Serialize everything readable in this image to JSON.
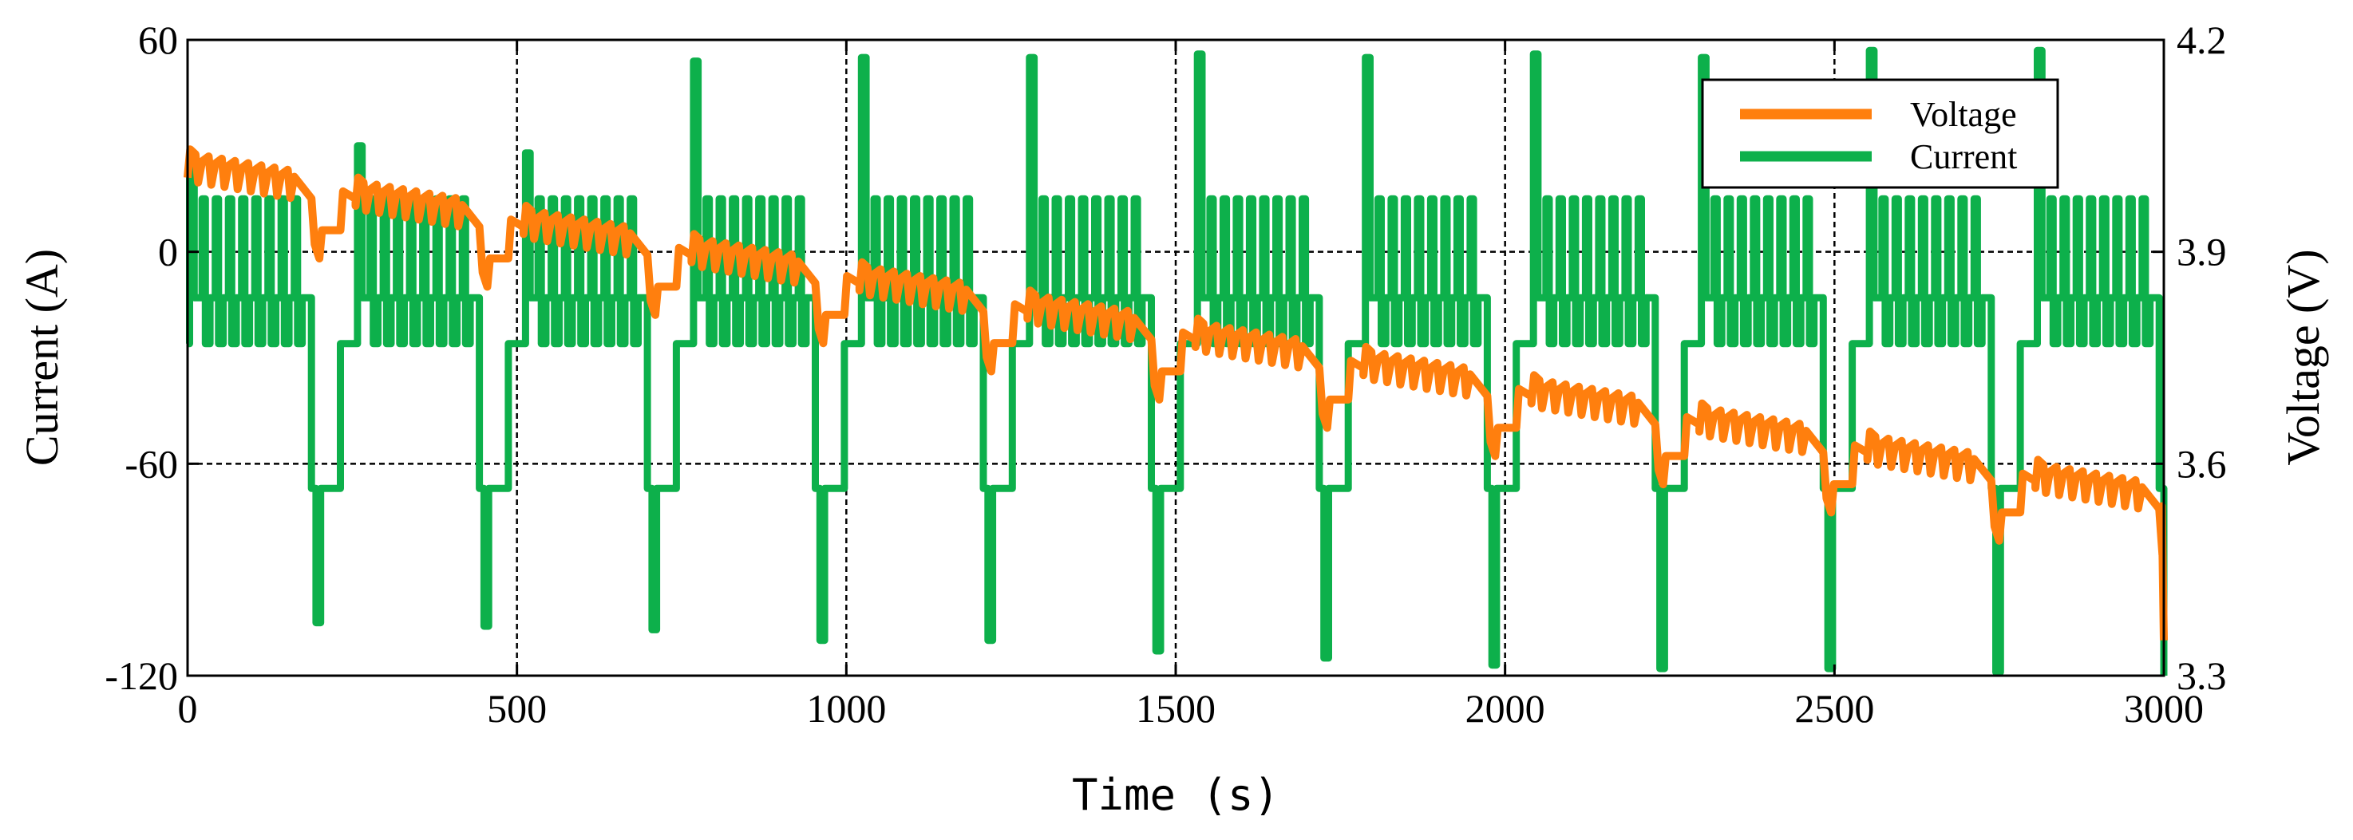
{
  "chart_data": {
    "type": "line",
    "title": "",
    "xlabel": "Time (s)",
    "ylabel_left": "Current (A)",
    "ylabel_right": "Voltage (V)",
    "xlim": [
      0,
      3000
    ],
    "ylim_left": [
      -120,
      60
    ],
    "ylim_right": [
      3.3,
      4.2
    ],
    "x_ticks": [
      "0",
      "500",
      "1000",
      "1500",
      "2000",
      "2500",
      "3000"
    ],
    "y_ticks_left": [
      "60",
      "0",
      "-60",
      "-120"
    ],
    "y_ticks_right": [
      "4.2",
      "3.9",
      "3.6",
      "3.3"
    ],
    "grid": true,
    "legend_position": "top-right",
    "legend": [
      "Voltage",
      "Current"
    ],
    "colors": {
      "voltage": "#ff7f0e",
      "current": "#0db04b"
    },
    "cycle_period_s": 255,
    "cycle_count": 12,
    "current_profile_per_cycle": {
      "idle_current_A": -26,
      "pulse_high_A": 15,
      "pulse_low_A": -13,
      "first_pulse_peak_A": [
        27,
        30,
        28,
        54,
        55,
        55,
        56,
        55,
        56,
        55,
        57,
        57
      ],
      "deep_discharge_A": [
        -105,
        -106,
        -107,
        -110,
        -110,
        -113,
        -115,
        -117,
        -118,
        -118,
        -119,
        -120
      ],
      "plateau_A": -67
    },
    "voltage_profile": {
      "start_V": 4.01,
      "end_V": 3.54,
      "ripple_V": 0.03,
      "end_drop_V": 3.35
    }
  }
}
